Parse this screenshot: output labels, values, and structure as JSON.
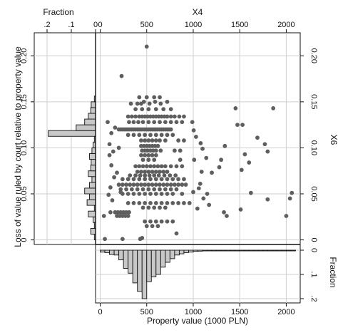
{
  "chart_data": {
    "type": "scatter",
    "top_axis": {
      "label": "X4",
      "ticks": [
        0,
        500,
        1000,
        1500,
        2000
      ]
    },
    "right_axis": {
      "label": "X6",
      "ticks": [
        "0",
        "0.05",
        "0.10",
        "0.15",
        "0.20"
      ]
    },
    "bottom_axis": {
      "label": "Property value (1000 PLN)",
      "ticks": [
        0,
        500,
        1000,
        1500,
        2000
      ]
    },
    "left_axis": {
      "label": "Loss of value ruled by court relative to property value",
      "ticks": [
        "0",
        "0.05",
        "0.10",
        "0.15",
        "0.20"
      ]
    },
    "left_hist_axis": {
      "label": "Fraction",
      "ticks": [
        ".2",
        ".1",
        "0"
      ]
    },
    "bottom_hist_axis": {
      "label": "Fraction",
      "ticks": [
        "0",
        ".1",
        ".2"
      ]
    },
    "xlim": [
      -50,
      2150
    ],
    "ylim": [
      -0.005,
      0.225
    ],
    "y_hist": {
      "bin_start": 0,
      "bin_width": 0.00625,
      "fractions": [
        0.005,
        0.02,
        0.005,
        0.01,
        0.03,
        0.005,
        0.035,
        0.025,
        0.045,
        0.025,
        0.015,
        0.03,
        0.02,
        0.018,
        0.025,
        0.015,
        0.01,
        0.005,
        0.195,
        0.08,
        0.045,
        0.03,
        0.02,
        0.018,
        0.005
      ]
    },
    "x_hist": {
      "bin_start": 0,
      "bin_width": 50,
      "fractions": [
        0.008,
        0.01,
        0.018,
        0.02,
        0.04,
        0.075,
        0.095,
        0.135,
        0.17,
        0.2,
        0.13,
        0.11,
        0.1,
        0.07,
        0.05,
        0.035,
        0.02,
        0.015,
        0.01,
        0.008,
        0.005,
        0.004,
        0.003,
        0.002,
        0.003,
        0.002,
        0.002,
        0.002,
        0.001,
        0.003,
        0.002,
        0.002,
        0.001,
        0.001,
        0.001,
        0.001,
        0.002,
        0.001,
        0.001,
        0.002,
        0.001,
        0.001
      ]
    },
    "points": [
      [
        500,
        0.21
      ],
      [
        230,
        0.178
      ],
      [
        1455,
        0.143
      ],
      [
        1475,
        0.125
      ],
      [
        1530,
        0.125
      ],
      [
        1690,
        0.111
      ],
      [
        1770,
        0.104
      ],
      [
        1555,
        0.093
      ],
      [
        1860,
        0.143
      ],
      [
        1800,
        0.096
      ],
      [
        1340,
        0.102
      ],
      [
        1600,
        0.084
      ],
      [
        1520,
        0.076
      ],
      [
        1280,
        0.079
      ],
      [
        1300,
        0.087
      ],
      [
        1140,
        0.089
      ],
      [
        1200,
        0.073
      ],
      [
        1620,
        0.051
      ],
      [
        1800,
        0.044
      ],
      [
        2000,
        0.026
      ],
      [
        2060,
        0.051
      ],
      [
        2040,
        0.045
      ],
      [
        1510,
        0.033
      ],
      [
        1330,
        0.03
      ],
      [
        1360,
        0.026
      ],
      [
        1110,
        0.045
      ],
      [
        1150,
        0.05
      ],
      [
        1060,
        0.056
      ],
      [
        1170,
        0.038
      ],
      [
        1045,
        0.034
      ],
      [
        1075,
        0.061
      ],
      [
        1030,
        0.112
      ],
      [
        1080,
        0.105
      ],
      [
        1100,
        0.099
      ],
      [
        1010,
        0.087
      ],
      [
        1090,
        0.074
      ],
      [
        1005,
        0.119
      ],
      [
        1000,
        0.052
      ],
      [
        990,
        0.128
      ],
      [
        240,
        0.001
      ],
      [
        50,
        0.001
      ],
      [
        450,
        0.002
      ],
      [
        430,
        0.001
      ],
      [
        40,
        0.026
      ],
      [
        110,
        0.03
      ],
      [
        80,
        0.128
      ],
      [
        100,
        0.104
      ],
      [
        120,
        0.116
      ],
      [
        160,
        0.122
      ],
      [
        140,
        0.096
      ],
      [
        100,
        0.092
      ],
      [
        120,
        0.081
      ],
      [
        150,
        0.068
      ],
      [
        110,
        0.057
      ],
      [
        90,
        0.049
      ],
      [
        130,
        0.043
      ],
      [
        820,
        0.007
      ],
      [
        200,
        0.1
      ],
      [
        180,
        0.073
      ],
      [
        220,
        0.052
      ],
      [
        200,
        0.12
      ],
      [
        220,
        0.12
      ],
      [
        240,
        0.12
      ],
      [
        260,
        0.12
      ],
      [
        280,
        0.12
      ],
      [
        300,
        0.12
      ],
      [
        320,
        0.12
      ],
      [
        340,
        0.12
      ],
      [
        360,
        0.12
      ],
      [
        380,
        0.12
      ],
      [
        400,
        0.12
      ],
      [
        420,
        0.12
      ],
      [
        440,
        0.12
      ],
      [
        460,
        0.12
      ],
      [
        480,
        0.12
      ],
      [
        500,
        0.12
      ],
      [
        520,
        0.12
      ],
      [
        540,
        0.12
      ],
      [
        560,
        0.12
      ],
      [
        580,
        0.12
      ],
      [
        600,
        0.12
      ],
      [
        620,
        0.12
      ],
      [
        640,
        0.12
      ],
      [
        660,
        0.12
      ],
      [
        680,
        0.12
      ],
      [
        700,
        0.12
      ],
      [
        720,
        0.12
      ],
      [
        740,
        0.12
      ],
      [
        760,
        0.12
      ],
      [
        300,
        0.134
      ],
      [
        340,
        0.134
      ],
      [
        380,
        0.134
      ],
      [
        420,
        0.134
      ],
      [
        450,
        0.134
      ],
      [
        480,
        0.134
      ],
      [
        510,
        0.134
      ],
      [
        540,
        0.134
      ],
      [
        570,
        0.134
      ],
      [
        600,
        0.134
      ],
      [
        630,
        0.134
      ],
      [
        660,
        0.134
      ],
      [
        690,
        0.134
      ],
      [
        720,
        0.134
      ],
      [
        760,
        0.134
      ],
      [
        800,
        0.134
      ],
      [
        850,
        0.134
      ],
      [
        900,
        0.134
      ],
      [
        310,
        0.128
      ],
      [
        360,
        0.128
      ],
      [
        410,
        0.128
      ],
      [
        460,
        0.128
      ],
      [
        520,
        0.128
      ],
      [
        580,
        0.128
      ],
      [
        640,
        0.128
      ],
      [
        700,
        0.128
      ],
      [
        760,
        0.128
      ],
      [
        820,
        0.128
      ],
      [
        880,
        0.128
      ],
      [
        330,
        0.148
      ],
      [
        400,
        0.148
      ],
      [
        440,
        0.148
      ],
      [
        470,
        0.15
      ],
      [
        530,
        0.148
      ],
      [
        590,
        0.15
      ],
      [
        650,
        0.148
      ],
      [
        720,
        0.15
      ],
      [
        380,
        0.142
      ],
      [
        450,
        0.142
      ],
      [
        520,
        0.142
      ],
      [
        600,
        0.142
      ],
      [
        680,
        0.142
      ],
      [
        760,
        0.142
      ],
      [
        420,
        0.155
      ],
      [
        500,
        0.155
      ],
      [
        580,
        0.155
      ],
      [
        640,
        0.155
      ],
      [
        300,
        0.114
      ],
      [
        360,
        0.114
      ],
      [
        420,
        0.114
      ],
      [
        480,
        0.114
      ],
      [
        540,
        0.114
      ],
      [
        600,
        0.114
      ],
      [
        660,
        0.114
      ],
      [
        720,
        0.114
      ],
      [
        780,
        0.114
      ],
      [
        440,
        0.108
      ],
      [
        480,
        0.108
      ],
      [
        520,
        0.108
      ],
      [
        560,
        0.108
      ],
      [
        600,
        0.108
      ],
      [
        640,
        0.108
      ],
      [
        700,
        0.108
      ],
      [
        840,
        0.108
      ],
      [
        900,
        0.108
      ],
      [
        440,
        0.102
      ],
      [
        470,
        0.102
      ],
      [
        500,
        0.102
      ],
      [
        530,
        0.102
      ],
      [
        560,
        0.102
      ],
      [
        590,
        0.102
      ],
      [
        620,
        0.102
      ],
      [
        450,
        0.097
      ],
      [
        480,
        0.097
      ],
      [
        510,
        0.097
      ],
      [
        540,
        0.097
      ],
      [
        570,
        0.097
      ],
      [
        600,
        0.097
      ],
      [
        650,
        0.097
      ],
      [
        800,
        0.097
      ],
      [
        860,
        0.097
      ],
      [
        440,
        0.092
      ],
      [
        480,
        0.092
      ],
      [
        520,
        0.092
      ],
      [
        560,
        0.092
      ],
      [
        600,
        0.092
      ],
      [
        460,
        0.087
      ],
      [
        520,
        0.087
      ],
      [
        580,
        0.087
      ],
      [
        860,
        0.087
      ],
      [
        380,
        0.08
      ],
      [
        420,
        0.08
      ],
      [
        460,
        0.08
      ],
      [
        500,
        0.08
      ],
      [
        540,
        0.08
      ],
      [
        580,
        0.08
      ],
      [
        620,
        0.08
      ],
      [
        660,
        0.08
      ],
      [
        700,
        0.08
      ],
      [
        760,
        0.08
      ],
      [
        820,
        0.08
      ],
      [
        880,
        0.08
      ],
      [
        400,
        0.074
      ],
      [
        440,
        0.074
      ],
      [
        480,
        0.074
      ],
      [
        520,
        0.074
      ],
      [
        560,
        0.074
      ],
      [
        600,
        0.074
      ],
      [
        640,
        0.074
      ],
      [
        680,
        0.074
      ],
      [
        720,
        0.074
      ],
      [
        320,
        0.07
      ],
      [
        380,
        0.07
      ],
      [
        430,
        0.07
      ],
      [
        480,
        0.07
      ],
      [
        530,
        0.07
      ],
      [
        580,
        0.07
      ],
      [
        630,
        0.07
      ],
      [
        690,
        0.07
      ],
      [
        750,
        0.07
      ],
      [
        810,
        0.07
      ],
      [
        240,
        0.066
      ],
      [
        300,
        0.066
      ],
      [
        360,
        0.066
      ],
      [
        420,
        0.066
      ],
      [
        480,
        0.066
      ],
      [
        540,
        0.066
      ],
      [
        600,
        0.066
      ],
      [
        660,
        0.066
      ],
      [
        720,
        0.066
      ],
      [
        780,
        0.066
      ],
      [
        840,
        0.066
      ],
      [
        900,
        0.066
      ],
      [
        200,
        0.06
      ],
      [
        240,
        0.06
      ],
      [
        280,
        0.06
      ],
      [
        320,
        0.06
      ],
      [
        360,
        0.06
      ],
      [
        400,
        0.06
      ],
      [
        440,
        0.06
      ],
      [
        480,
        0.06
      ],
      [
        520,
        0.06
      ],
      [
        560,
        0.06
      ],
      [
        600,
        0.06
      ],
      [
        640,
        0.06
      ],
      [
        680,
        0.06
      ],
      [
        720,
        0.06
      ],
      [
        760,
        0.06
      ],
      [
        800,
        0.06
      ],
      [
        840,
        0.06
      ],
      [
        880,
        0.06
      ],
      [
        920,
        0.06
      ],
      [
        220,
        0.055
      ],
      [
        280,
        0.055
      ],
      [
        340,
        0.055
      ],
      [
        400,
        0.055
      ],
      [
        460,
        0.055
      ],
      [
        520,
        0.055
      ],
      [
        580,
        0.055
      ],
      [
        640,
        0.055
      ],
      [
        700,
        0.055
      ],
      [
        760,
        0.055
      ],
      [
        820,
        0.055
      ],
      [
        240,
        0.05
      ],
      [
        300,
        0.05
      ],
      [
        360,
        0.05
      ],
      [
        420,
        0.05
      ],
      [
        480,
        0.05
      ],
      [
        540,
        0.05
      ],
      [
        600,
        0.05
      ],
      [
        660,
        0.05
      ],
      [
        720,
        0.05
      ],
      [
        780,
        0.05
      ],
      [
        880,
        0.05
      ],
      [
        300,
        0.04
      ],
      [
        360,
        0.04
      ],
      [
        420,
        0.04
      ],
      [
        480,
        0.04
      ],
      [
        540,
        0.04
      ],
      [
        600,
        0.04
      ],
      [
        660,
        0.04
      ],
      [
        720,
        0.04
      ],
      [
        780,
        0.04
      ],
      [
        840,
        0.04
      ],
      [
        900,
        0.04
      ],
      [
        960,
        0.04
      ],
      [
        460,
        0.035
      ],
      [
        520,
        0.035
      ],
      [
        580,
        0.035
      ],
      [
        640,
        0.035
      ],
      [
        700,
        0.035
      ],
      [
        160,
        0.03
      ],
      [
        190,
        0.03
      ],
      [
        220,
        0.03
      ],
      [
        250,
        0.03
      ],
      [
        280,
        0.03
      ],
      [
        310,
        0.03
      ],
      [
        180,
        0.026
      ],
      [
        210,
        0.026
      ],
      [
        240,
        0.026
      ],
      [
        270,
        0.026
      ],
      [
        300,
        0.026
      ],
      [
        480,
        0.02
      ],
      [
        540,
        0.02
      ],
      [
        600,
        0.02
      ],
      [
        660,
        0.02
      ],
      [
        720,
        0.02
      ],
      [
        780,
        0.02
      ],
      [
        500,
        0.015
      ],
      [
        560,
        0.015
      ],
      [
        620,
        0.015
      ]
    ]
  }
}
